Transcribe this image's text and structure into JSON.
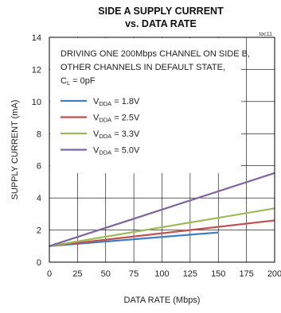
{
  "chart_data": {
    "type": "line",
    "title_line1": "SIDE A SUPPLY CURRENT",
    "title_line2": "vs. DATA RATE",
    "tag": "toc11",
    "xlabel": "DATA RATE (Mbps)",
    "ylabel": "SUPPLY CURRENT (mA)",
    "xlim": [
      0,
      200
    ],
    "ylim": [
      0,
      14
    ],
    "xticks": [
      0,
      25,
      50,
      75,
      100,
      125,
      150,
      175,
      200
    ],
    "yticks": [
      0,
      2,
      4,
      6,
      8,
      10,
      12,
      14
    ],
    "grid": true,
    "annotation": {
      "line1": "DRIVING ONE 200Mbps CHANNEL ON SIDE B,",
      "line2": "OTHER CHANNELS IN DEFAULT STATE,",
      "line3_main": "C",
      "line3_sub": "L",
      "line3_rest": " = 0pF"
    },
    "legend_position": "upper-left",
    "series": [
      {
        "name": "VDDA = 1.8V",
        "legend_main": "V",
        "legend_sub": "DDA",
        "legend_rest": " = 1.8V",
        "color": "#3f7fc3",
        "x": [
          0,
          150
        ],
        "y": [
          1.0,
          1.85
        ]
      },
      {
        "name": "VDDA = 2.5V",
        "legend_main": "V",
        "legend_sub": "DDA",
        "legend_rest": " = 2.5V",
        "color": "#c0504d",
        "x": [
          0,
          200
        ],
        "y": [
          1.0,
          2.6
        ]
      },
      {
        "name": "VDDA = 3.3V",
        "legend_main": "V",
        "legend_sub": "DDA",
        "legend_rest": " = 3.3V",
        "color": "#9bbb59",
        "x": [
          0,
          200
        ],
        "y": [
          1.0,
          3.35
        ]
      },
      {
        "name": "VDDA = 5.0V",
        "legend_main": "V",
        "legend_sub": "DDA",
        "legend_rest": " = 5.0V",
        "color": "#8064a2",
        "x": [
          0,
          200
        ],
        "y": [
          1.0,
          5.55
        ]
      }
    ]
  }
}
